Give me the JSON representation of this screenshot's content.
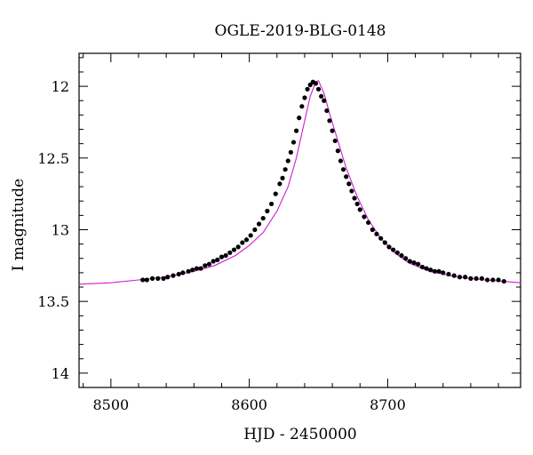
{
  "chart_data": {
    "type": "scatter",
    "title": "OGLE-2019-BLG-0148",
    "xlabel": "HJD - 2450000",
    "ylabel": "I magnitude",
    "xlim": [
      8477,
      8796
    ],
    "ylim": [
      14.1,
      11.77
    ],
    "y_inverted": true,
    "x_ticks": [
      8500,
      8600,
      8700
    ],
    "x_tick_labels": [
      "8500",
      "8600",
      "8700"
    ],
    "y_ticks": [
      12,
      12.5,
      13,
      13.5,
      14
    ],
    "y_tick_labels": [
      "12",
      "12.5",
      "13",
      "13.5",
      "14"
    ],
    "grid": false,
    "legend": "none",
    "series": [
      {
        "kind": "points",
        "color": "#000000",
        "x": [
          8523,
          8526,
          8530,
          8534,
          8538,
          8541,
          8545,
          8549,
          8552,
          8556,
          8559,
          8562,
          8565,
          8568,
          8571,
          8574,
          8577,
          8580,
          8583,
          8586,
          8589,
          8592,
          8595,
          8598,
          8601,
          8604,
          8607,
          8610,
          8613,
          8616,
          8619,
          8622,
          8624,
          8626,
          8628,
          8630,
          8632,
          8634,
          8636,
          8638,
          8640,
          8642,
          8644,
          8646,
          8648,
          8650,
          8652,
          8654,
          8656,
          8658,
          8660,
          8662,
          8664,
          8666,
          8668,
          8670,
          8672,
          8674,
          8676,
          8678,
          8680,
          8683,
          8686,
          8689,
          8692,
          8695,
          8698,
          8701,
          8704,
          8707,
          8710,
          8713,
          8716,
          8719,
          8722,
          8725,
          8728,
          8731,
          8734,
          8737,
          8740,
          8744,
          8748,
          8752,
          8756,
          8760,
          8764,
          8768,
          8772,
          8776,
          8780,
          8784
        ],
        "y": [
          13.35,
          13.35,
          13.34,
          13.34,
          13.34,
          13.33,
          13.32,
          13.31,
          13.3,
          13.29,
          13.28,
          13.27,
          13.27,
          13.25,
          13.24,
          13.22,
          13.21,
          13.19,
          13.18,
          13.16,
          13.14,
          13.12,
          13.09,
          13.07,
          13.04,
          13.0,
          12.96,
          12.92,
          12.87,
          12.82,
          12.75,
          12.68,
          12.64,
          12.58,
          12.52,
          12.46,
          12.39,
          12.31,
          12.22,
          12.14,
          12.08,
          12.02,
          11.99,
          11.97,
          11.98,
          12.02,
          12.07,
          12.1,
          12.17,
          12.24,
          12.31,
          12.38,
          12.45,
          12.52,
          12.58,
          12.63,
          12.68,
          12.73,
          12.78,
          12.82,
          12.86,
          12.91,
          12.95,
          13.0,
          13.03,
          13.06,
          13.09,
          13.12,
          13.14,
          13.16,
          13.18,
          13.2,
          13.22,
          13.23,
          13.24,
          13.26,
          13.27,
          13.28,
          13.29,
          13.29,
          13.3,
          13.31,
          13.32,
          13.33,
          13.33,
          13.34,
          13.34,
          13.34,
          13.35,
          13.35,
          13.35,
          13.36
        ]
      },
      {
        "kind": "model-line",
        "color": "#d11ad1",
        "x": [
          8477,
          8500,
          8520,
          8540,
          8560,
          8575,
          8590,
          8600,
          8610,
          8620,
          8628,
          8634,
          8640,
          8644,
          8648,
          8650,
          8654,
          8658,
          8664,
          8670,
          8678,
          8686,
          8695,
          8705,
          8715,
          8730,
          8750,
          8770,
          8796
        ],
        "y": [
          13.38,
          13.37,
          13.35,
          13.33,
          13.29,
          13.25,
          13.18,
          13.11,
          13.02,
          12.87,
          12.7,
          12.5,
          12.24,
          12.07,
          11.97,
          11.96,
          12.05,
          12.19,
          12.38,
          12.57,
          12.77,
          12.93,
          13.06,
          13.16,
          13.23,
          13.29,
          13.33,
          13.35,
          13.37
        ]
      }
    ]
  }
}
